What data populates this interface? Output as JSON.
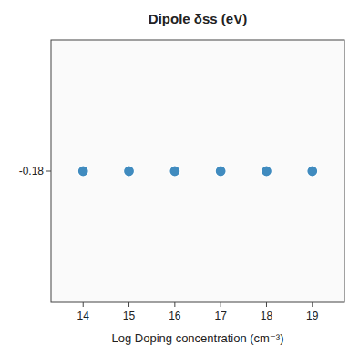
{
  "chart_data": {
    "type": "scatter",
    "title": "Dipole δss (eV)",
    "x_label": "Log Doping concentration (cm⁻³)",
    "x": [
      14,
      15,
      16,
      17,
      18,
      19
    ],
    "values": [
      -0.18,
      -0.18,
      -0.18,
      -0.18,
      -0.18,
      -0.18
    ],
    "xlim": [
      13.3,
      19.7
    ],
    "ylim": [
      -0.28,
      -0.08
    ],
    "xticks": [
      14,
      15,
      16,
      17,
      18,
      19
    ],
    "yticks": [
      -0.18
    ],
    "grid": false
  }
}
